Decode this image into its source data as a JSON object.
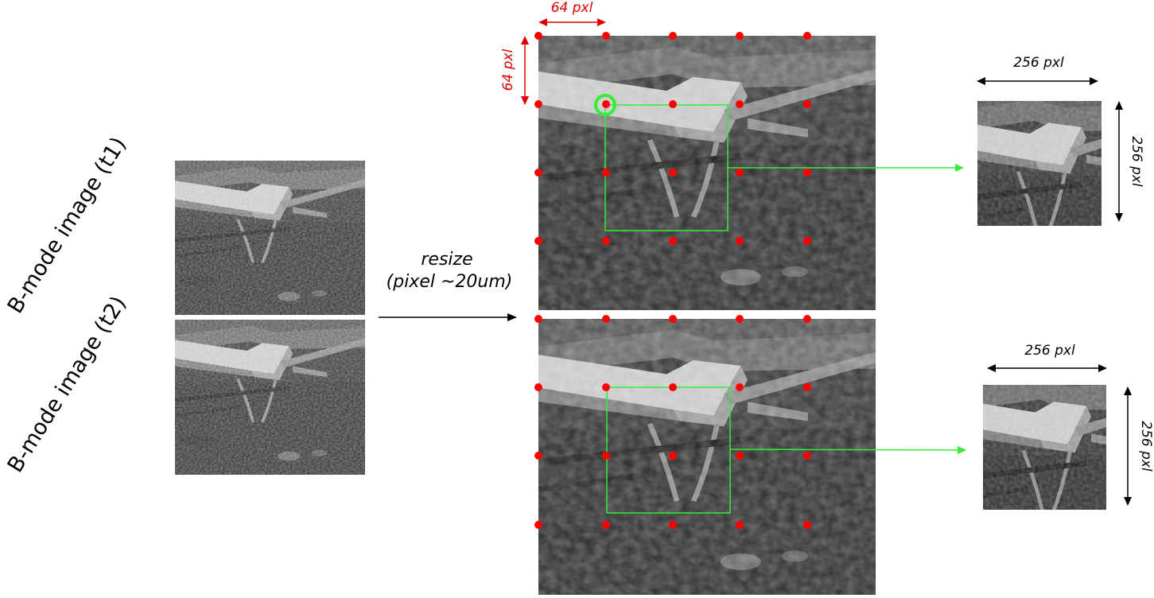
{
  "labels": {
    "bmode_t1": "B-mode image (t1)",
    "bmode_t2": "B-mode image (t2)",
    "resize_line1": "resize",
    "resize_line2": "(pixel ~20um)",
    "grid_width": "64 pxl",
    "grid_height": "64 pxl",
    "patch1_width": "256 pxl",
    "patch1_height": "256 pxl",
    "patch2_width": "256 pxl",
    "patch2_height": "256 pxl"
  },
  "colors": {
    "grid_point": "#ff0000",
    "dim_red": "#e00000",
    "window": "#33ee33",
    "arrow_black": "#000000"
  }
}
